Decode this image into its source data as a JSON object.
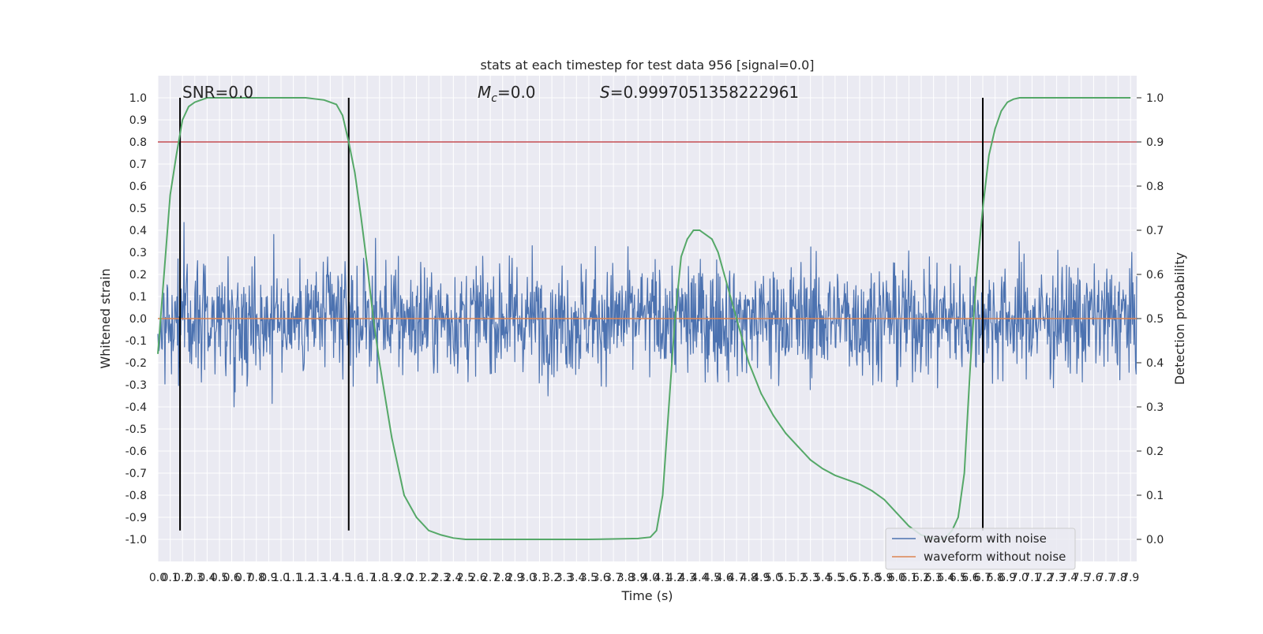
{
  "chart_data": {
    "type": "line",
    "title": "stats at each timestep for test data 956 [signal=0.0]",
    "xlabel": "Time (s)",
    "ylabel": "Whitened strain",
    "y2label": "Detection probability",
    "xlim": [
      0.0,
      7.95
    ],
    "ylim": [
      -1.1,
      1.1
    ],
    "y2lim": [
      -0.05,
      1.05
    ],
    "x_tick_step": 0.1,
    "y_tick_step": 0.1,
    "y2_ticks": [
      0.0,
      0.1,
      0.2,
      0.3,
      0.4,
      0.5,
      0.6,
      0.7,
      0.8,
      0.9,
      1.0
    ],
    "grid": true,
    "legend_position": "lower-right",
    "annotations": {
      "snr": "SNR=0.0",
      "mc_symbol": "M",
      "mc_sub": "c",
      "mc_value": "=0.0",
      "s_symbol": "S",
      "s_value": "=0.9997051358222961"
    },
    "threshold_line": {
      "y": 0.8,
      "color": "#c44e52"
    },
    "vertical_markers": [
      0.18,
      1.55,
      6.7
    ],
    "series": [
      {
        "name": "waveform with noise",
        "color": "#4c72b0",
        "axis": "left",
        "x_range": [
          0.0,
          7.95
        ],
        "samples": 1800,
        "envelope": {
          "typical_min": -0.35,
          "typical_max": 0.4,
          "extreme_min": -0.96,
          "extreme_max": 1.0
        }
      },
      {
        "name": "waveform without noise",
        "color": "#dd8452",
        "axis": "left",
        "x": [
          0.0,
          7.95
        ],
        "y": [
          0.0,
          0.0
        ]
      },
      {
        "color": "#55a868",
        "axis": "right",
        "x": [
          0.0,
          0.05,
          0.1,
          0.15,
          0.2,
          0.25,
          0.3,
          0.35,
          0.4,
          0.5,
          0.6,
          0.8,
          1.0,
          1.2,
          1.35,
          1.45,
          1.5,
          1.55,
          1.6,
          1.65,
          1.7,
          1.75,
          1.8,
          1.9,
          2.0,
          2.1,
          2.2,
          2.3,
          2.4,
          2.5,
          2.7,
          3.0,
          3.5,
          3.9,
          4.0,
          4.05,
          4.1,
          4.15,
          4.2,
          4.25,
          4.3,
          4.35,
          4.4,
          4.45,
          4.5,
          4.55,
          4.6,
          4.7,
          4.8,
          4.9,
          5.0,
          5.1,
          5.2,
          5.3,
          5.4,
          5.5,
          5.6,
          5.7,
          5.8,
          5.9,
          6.0,
          6.1,
          6.2,
          6.3,
          6.35,
          6.4,
          6.45,
          6.5,
          6.55,
          6.6,
          6.65,
          6.7,
          6.75,
          6.8,
          6.85,
          6.9,
          6.95,
          7.0,
          7.2,
          7.5,
          7.7,
          7.9
        ],
        "y": [
          0.42,
          0.6,
          0.78,
          0.87,
          0.95,
          0.98,
          0.99,
          0.995,
          1.0,
          1.0,
          1.0,
          1.0,
          1.0,
          1.0,
          0.995,
          0.985,
          0.96,
          0.9,
          0.83,
          0.73,
          0.62,
          0.5,
          0.4,
          0.23,
          0.1,
          0.05,
          0.02,
          0.01,
          0.003,
          0.0,
          0.0,
          0.0,
          0.0,
          0.002,
          0.005,
          0.02,
          0.1,
          0.3,
          0.5,
          0.64,
          0.68,
          0.7,
          0.7,
          0.69,
          0.68,
          0.65,
          0.6,
          0.5,
          0.4,
          0.33,
          0.28,
          0.24,
          0.21,
          0.18,
          0.16,
          0.145,
          0.135,
          0.125,
          0.11,
          0.09,
          0.06,
          0.03,
          0.01,
          0.002,
          0.0,
          0.005,
          0.02,
          0.05,
          0.15,
          0.4,
          0.6,
          0.75,
          0.87,
          0.93,
          0.97,
          0.99,
          0.997,
          1.0,
          1.0,
          1.0,
          1.0,
          1.0
        ]
      }
    ]
  }
}
